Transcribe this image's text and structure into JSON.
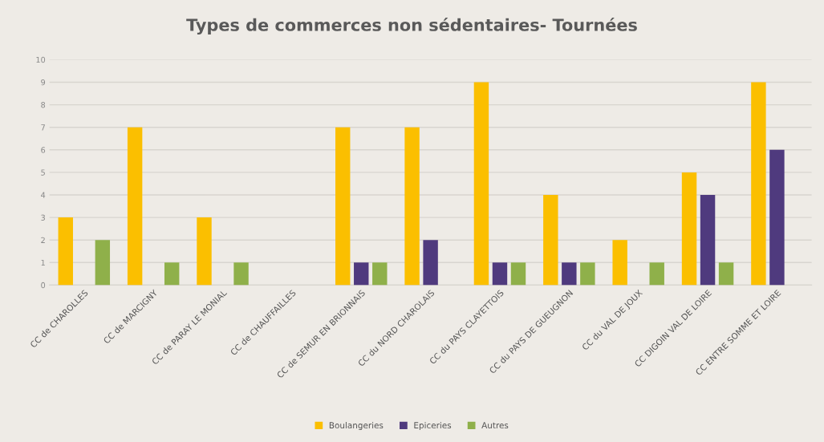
{
  "chart_data": {
    "type": "bar",
    "title": "Types de commerces non sédentaires- Tournées",
    "categories": [
      "CC de CHAROLLES",
      "CC de MARCIGNY",
      "CC de PARAY LE MONIAL",
      "CC de CHAUFFAILLES",
      "CC de SEMUR EN BRIONNAIS",
      "CC du NORD CHAROLAIS",
      "CC du PAYS CLAYETTOIS",
      "CC du PAYS DE GUEUGNON",
      "CC du VAL DE JOUX",
      "CC DIGOIN VAL DE LOIRE",
      "CC ENTRE SOMME ET LOIRE"
    ],
    "series": [
      {
        "name": "Boulangeries",
        "color": "#fbbf00",
        "values": [
          3,
          7,
          3,
          null,
          7,
          7,
          9,
          4,
          2,
          5,
          9
        ]
      },
      {
        "name": "Epiceries",
        "color": "#4f3a7e",
        "values": [
          null,
          null,
          null,
          null,
          1,
          2,
          1,
          1,
          null,
          4,
          6
        ]
      },
      {
        "name": "Autres",
        "color": "#8fb04a",
        "values": [
          2,
          1,
          1,
          null,
          1,
          null,
          1,
          1,
          1,
          1,
          null
        ]
      }
    ],
    "ylim": [
      0,
      10
    ],
    "yticks": [
      0,
      1,
      2,
      3,
      4,
      5,
      6,
      7,
      8,
      9,
      10
    ],
    "grid": "y",
    "legend": "bottom"
  }
}
